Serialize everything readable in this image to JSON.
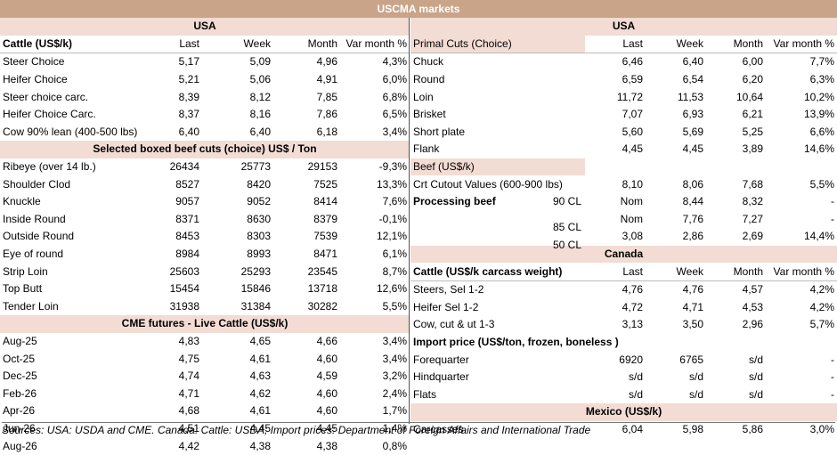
{
  "title": "USCMA markets",
  "left": {
    "region": "USA",
    "cattle": {
      "header": [
        "Cattle (US$/k)",
        "Last",
        "Week",
        "Month",
        "Var month %"
      ],
      "rows": [
        [
          "Steer Choice",
          "5,17",
          "5,09",
          "4,96",
          "4,3%"
        ],
        [
          "Heifer Choice",
          "5,21",
          "5,06",
          "4,91",
          "6,0%"
        ],
        [
          "Steer choice carc.",
          "8,39",
          "8,12",
          "7,85",
          "6,8%"
        ],
        [
          "Heifer Choice Carc.",
          "8,37",
          "8,16",
          "7,86",
          "6,5%"
        ],
        [
          "Cow 90% lean (400-500 lbs)",
          "6,40",
          "6,40",
          "6,18",
          "3,4%"
        ]
      ]
    },
    "boxed": {
      "title": "Selected boxed beef cuts (choice) US$ / Ton",
      "rows": [
        [
          "Ribeye (over 14 lb.)",
          "26434",
          "25773",
          "29153",
          "-9,3%"
        ],
        [
          "Shoulder Clod",
          "8527",
          "8420",
          "7525",
          "13,3%"
        ],
        [
          "Knuckle",
          "9057",
          "9052",
          "8414",
          "7,6%"
        ],
        [
          "Inside Round",
          "8371",
          "8630",
          "8379",
          "-0,1%"
        ],
        [
          "Outside Round",
          "8453",
          "8303",
          "7539",
          "12,1%"
        ],
        [
          "Eye of round",
          "8984",
          "8993",
          "8471",
          "6,1%"
        ],
        [
          "Strip Loin",
          "25603",
          "25293",
          "23545",
          "8,7%"
        ],
        [
          "Top Butt",
          "15454",
          "15846",
          "13718",
          "12,6%"
        ],
        [
          "Tender Loin",
          "31938",
          "31384",
          "30282",
          "5,5%"
        ]
      ]
    },
    "futures": {
      "title": "CME futures - Live Cattle (US$/k)",
      "rows": [
        [
          "Aug-25",
          "4,83",
          "4,65",
          "4,66",
          "3,4%"
        ],
        [
          "Oct-25",
          "4,75",
          "4,61",
          "4,60",
          "3,4%"
        ],
        [
          "Dec-25",
          "4,74",
          "4,63",
          "4,59",
          "3,2%"
        ],
        [
          "Feb-26",
          "4,71",
          "4,62",
          "4,60",
          "2,4%"
        ],
        [
          "Apr-26",
          "4,68",
          "4,61",
          "4,60",
          "1,7%"
        ],
        [
          "Jun-26",
          "4,51",
          "4,45",
          "4,45",
          "1,4%"
        ],
        [
          "Aug-26",
          "4,42",
          "4,38",
          "4,38",
          "0,8%"
        ]
      ]
    }
  },
  "right": {
    "region": "USA",
    "primal": {
      "header": [
        "Primal Cuts (Choice)",
        "Last",
        "Week",
        "Month",
        "Var month %"
      ],
      "rows": [
        [
          "Chuck",
          "6,46",
          "6,40",
          "6,00",
          "7,7%"
        ],
        [
          "Round",
          "6,59",
          "6,54",
          "6,20",
          "6,3%"
        ],
        [
          "Loin",
          "11,72",
          "11,53",
          "10,64",
          "10,2%"
        ],
        [
          "Brisket",
          "7,07",
          "6,93",
          "6,21",
          "13,9%"
        ],
        [
          "Short plate",
          "5,60",
          "5,69",
          "5,25",
          "6,6%"
        ],
        [
          "Flank",
          "4,45",
          "4,45",
          "3,89",
          "14,6%"
        ]
      ]
    },
    "beef": {
      "label": "Beef (US$/k)",
      "cutout": [
        "Crt Cutout Values (600-900 lbs)",
        "8,10",
        "8,06",
        "7,68",
        "5,5%"
      ],
      "processing_label": "Processing beef",
      "processing": [
        [
          "90 CL",
          "Nom",
          "8,44",
          "8,32",
          "-"
        ],
        [
          "85 CL",
          "Nom",
          "7,76",
          "7,27",
          "-"
        ],
        [
          "50 CL",
          "3,08",
          "2,86",
          "2,69",
          "14,4%"
        ]
      ]
    },
    "canada": {
      "title": "Canada",
      "header": [
        "Cattle (US$/k carcass weight)",
        "Last",
        "Week",
        "Month",
        "Var month %"
      ],
      "rows": [
        [
          "Steers, Sel 1-2",
          "4,76",
          "4,76",
          "4,57",
          "4,2%"
        ],
        [
          "Heifer Sel 1-2",
          "4,72",
          "4,71",
          "4,53",
          "4,2%"
        ],
        [
          "Cow, cut & ut 1-3",
          "3,13",
          "3,50",
          "2,96",
          "5,7%"
        ]
      ],
      "import_title": "Import price (US$/ton, frozen, boneless )",
      "import_rows": [
        [
          "Forequarter",
          "6920",
          "6765",
          "s/d",
          "-"
        ],
        [
          "Hindquarter",
          "s/d",
          "s/d",
          "s/d",
          "-"
        ],
        [
          "Flats",
          "s/d",
          "s/d",
          "s/d",
          "-"
        ]
      ]
    },
    "mexico": {
      "title": "Mexico (US$/k)",
      "rows": [
        [
          "Carcasses",
          "6,04",
          "5,98",
          "5,86",
          "3,0%"
        ]
      ]
    }
  },
  "footer": "Sources: USA: USDA and CME. Canada: Cattle: USDA; Import prices: Department of Foreign Affairs and International Trade"
}
